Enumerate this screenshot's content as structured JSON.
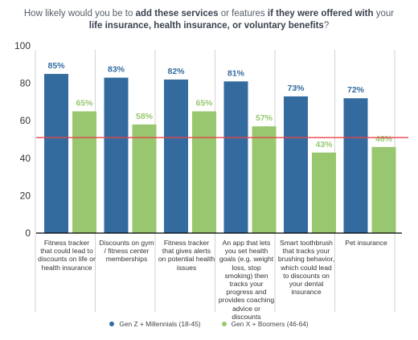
{
  "title": {
    "parts": [
      {
        "text": "How likely would you be to ",
        "bold": false
      },
      {
        "text": "add these services",
        "bold": true
      },
      {
        "text": " or features ",
        "bold": false
      },
      {
        "text": "if they were offered with",
        "bold": true
      },
      {
        "text": " your",
        "bold": false
      },
      {
        "text": "|",
        "bold": false
      },
      {
        "text": "life insurance, health insurance, or voluntary benefits",
        "bold": true
      },
      {
        "text": "?",
        "bold": false
      }
    ]
  },
  "colors": {
    "genz": "#336b9f",
    "genx": "#98c770",
    "reference_line": "#e8424a",
    "axis": "#000000",
    "gridline": "#bfbfbf"
  },
  "chart_data": {
    "type": "bar",
    "title": "How likely would you be to add these services or features if they were offered with your life insurance, health insurance, or voluntary benefits?",
    "categories": [
      "Fitness tracker that could lead to discounts on life or health insurance",
      "Discounts on gym / fitness center memberships",
      "Fitness tracker that gives alerts on potential health issues",
      "An app that lets you set health goals (e.g. weight loss, stop smoking) then tracks your progress and provides coaching advice or discounts",
      "Smart toothbrush that tracks your brushing behavior, which could lead to discounts on your dental insurance",
      "Pet insurance"
    ],
    "series": [
      {
        "name": "Gen Z + Millennials (18-45)",
        "values": [
          85,
          83,
          82,
          81,
          73,
          72
        ],
        "labels": [
          "85%",
          "83%",
          "82%",
          "81%",
          "73%",
          "72%"
        ]
      },
      {
        "name": "Gen X + Boomers (46-64)",
        "values": [
          65,
          58,
          65,
          57,
          43,
          46
        ],
        "labels": [
          "65%",
          "58%",
          "65%",
          "57%",
          "43%",
          "46%"
        ]
      }
    ],
    "yticks": [
      "0",
      "20",
      "40",
      "60",
      "80",
      "100"
    ],
    "ylim": [
      0,
      100
    ],
    "reference_line": 51,
    "grid": false,
    "legend_position": "bottom-center",
    "xlabel": "",
    "ylabel": ""
  }
}
